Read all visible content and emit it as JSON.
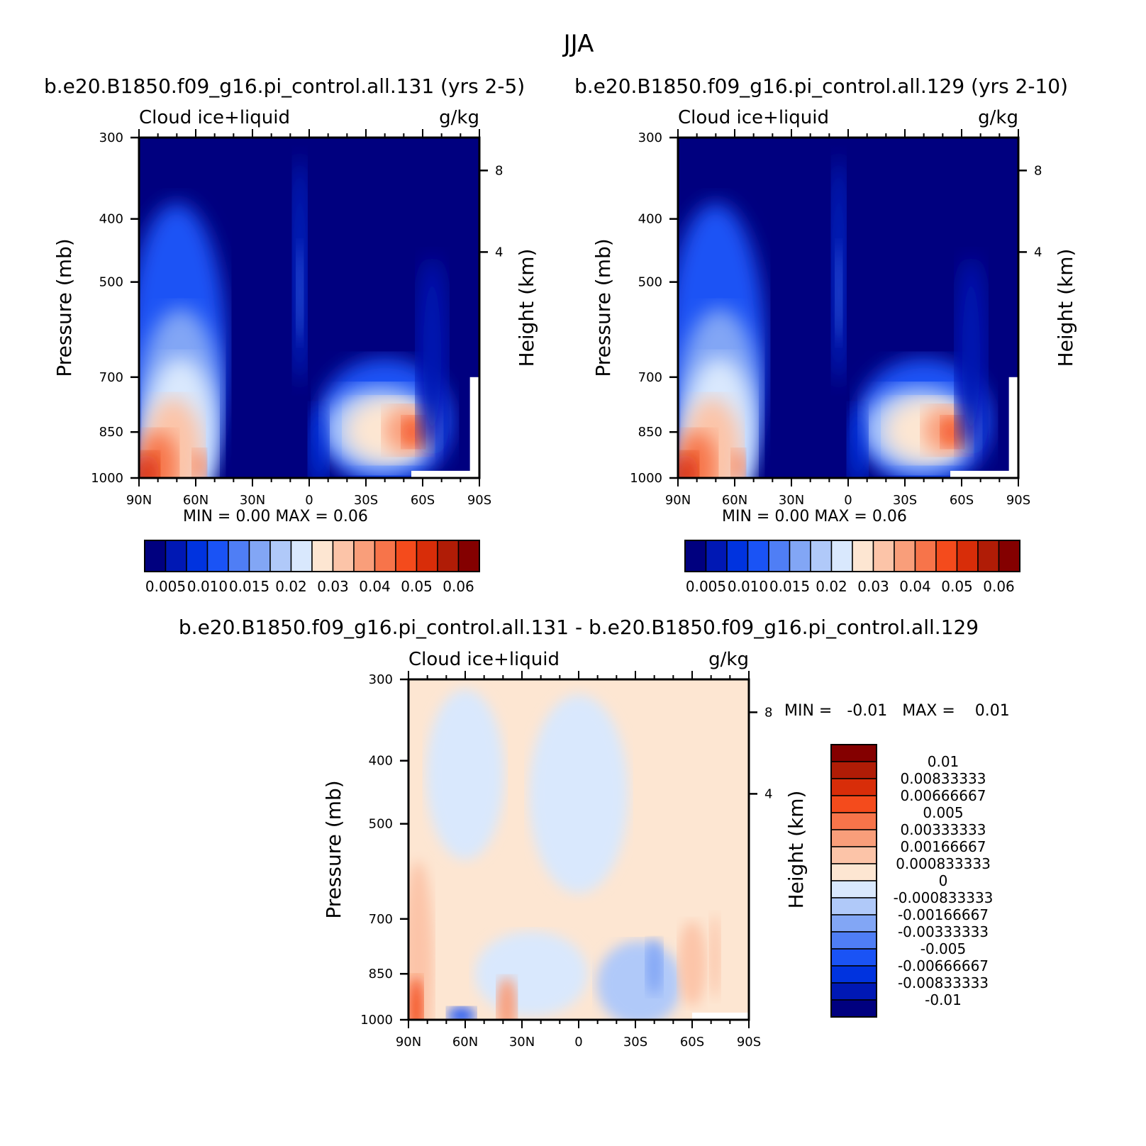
{
  "season_title": "JJA",
  "panels": [
    {
      "case_title": "b.e20.B1850.f09_g16.pi_control.all.131 (yrs 2-5)",
      "variable": "Cloud ice+liquid",
      "units": "g/kg",
      "min_max_text": "MIN =    0.00   MAX =    0.06"
    },
    {
      "case_title": "b.e20.B1850.f09_g16.pi_control.all.129 (yrs 2-10)",
      "variable": "Cloud ice+liquid",
      "units": "g/kg",
      "min_max_text": "MIN =    0.00   MAX =    0.06"
    },
    {
      "case_title": "b.e20.B1850.f09_g16.pi_control.all.131 - b.e20.B1850.f09_g16.pi_control.all.129",
      "variable": "Cloud ice+liquid",
      "units": "g/kg",
      "min_max_text": "MIN =   -0.01   MAX =    0.01"
    }
  ],
  "axes": {
    "ylabel": "Pressure (mb)",
    "ylabel_right": "Height (km)",
    "pressure_ticks": [
      "300",
      "400",
      "500",
      "700",
      "850",
      "1000"
    ],
    "height_ticks": [
      "8",
      "4"
    ],
    "lat_ticks": [
      "90N",
      "60N",
      "30N",
      "0",
      "30S",
      "60S",
      "90S"
    ]
  },
  "colors": {
    "abs_scale": [
      "#00007f",
      "#0018b4",
      "#0033df",
      "#1a53f5",
      "#4f7ef5",
      "#82a6f5",
      "#b0c9f9",
      "#d9e8fd",
      "#fde6d2",
      "#fcc4a8",
      "#f99e7a",
      "#f7744a",
      "#f44b1c",
      "#d82d09",
      "#b01c06",
      "#840000"
    ],
    "diff_scale": [
      "#00007f",
      "#0018b4",
      "#0033df",
      "#1a53f5",
      "#4f7ef5",
      "#82a6f5",
      "#b0c9f9",
      "#d9e8fd",
      "#fde6d2",
      "#fcc4a8",
      "#f99e7a",
      "#f7744a",
      "#f44b1c",
      "#d82d09",
      "#b01c06",
      "#840000"
    ]
  },
  "colorbar_abs_labels": [
    "0.005",
    "0.010",
    "0.015",
    "0.02",
    "0.03",
    "0.04",
    "0.05",
    "0.06"
  ],
  "colorbar_diff_labels": [
    "0.01",
    "0.00833333",
    "0.00666667",
    "0.005",
    "0.00333333",
    "0.00166667",
    "0.000833333",
    "0",
    "-0.000833333",
    "-0.00166667",
    "-0.00333333",
    "-0.005",
    "-0.00666667",
    "-0.00833333",
    "-0.01"
  ],
  "chart_data": [
    {
      "type": "heatmap",
      "title": "b.e20.B1850.f09_g16.pi_control.all.131 (yrs 2-5)",
      "xlabel": "",
      "ylabel": "Pressure (mb)",
      "x": [
        90,
        60,
        30,
        0,
        -30,
        -60,
        -90
      ],
      "ylim": [
        1000,
        300
      ],
      "min": 0.0,
      "max": 0.06,
      "levels": [
        0.005,
        0.01,
        0.015,
        0.02,
        0.03,
        0.04,
        0.05,
        0.06
      ]
    },
    {
      "type": "heatmap",
      "title": "b.e20.B1850.f09_g16.pi_control.all.129 (yrs 2-10)",
      "xlabel": "",
      "ylabel": "Pressure (mb)",
      "x": [
        90,
        60,
        30,
        0,
        -30,
        -60,
        -90
      ],
      "ylim": [
        1000,
        300
      ],
      "min": 0.0,
      "max": 0.06,
      "levels": [
        0.005,
        0.01,
        0.015,
        0.02,
        0.03,
        0.04,
        0.05,
        0.06
      ]
    },
    {
      "type": "heatmap",
      "title": "b.e20.B1850.f09_g16.pi_control.all.131 - b.e20.B1850.f09_g16.pi_control.all.129",
      "xlabel": "",
      "ylabel": "Pressure (mb)",
      "x": [
        90,
        60,
        30,
        0,
        -30,
        -60,
        -90
      ],
      "ylim": [
        1000,
        300
      ],
      "min": -0.01,
      "max": 0.01,
      "levels": [
        -0.01,
        -0.00833333,
        -0.00666667,
        -0.005,
        -0.00333333,
        -0.00166667,
        -0.000833333,
        0,
        0.000833333,
        0.00166667,
        0.00333333,
        0.005,
        0.00666667,
        0.00833333,
        0.01
      ]
    }
  ]
}
